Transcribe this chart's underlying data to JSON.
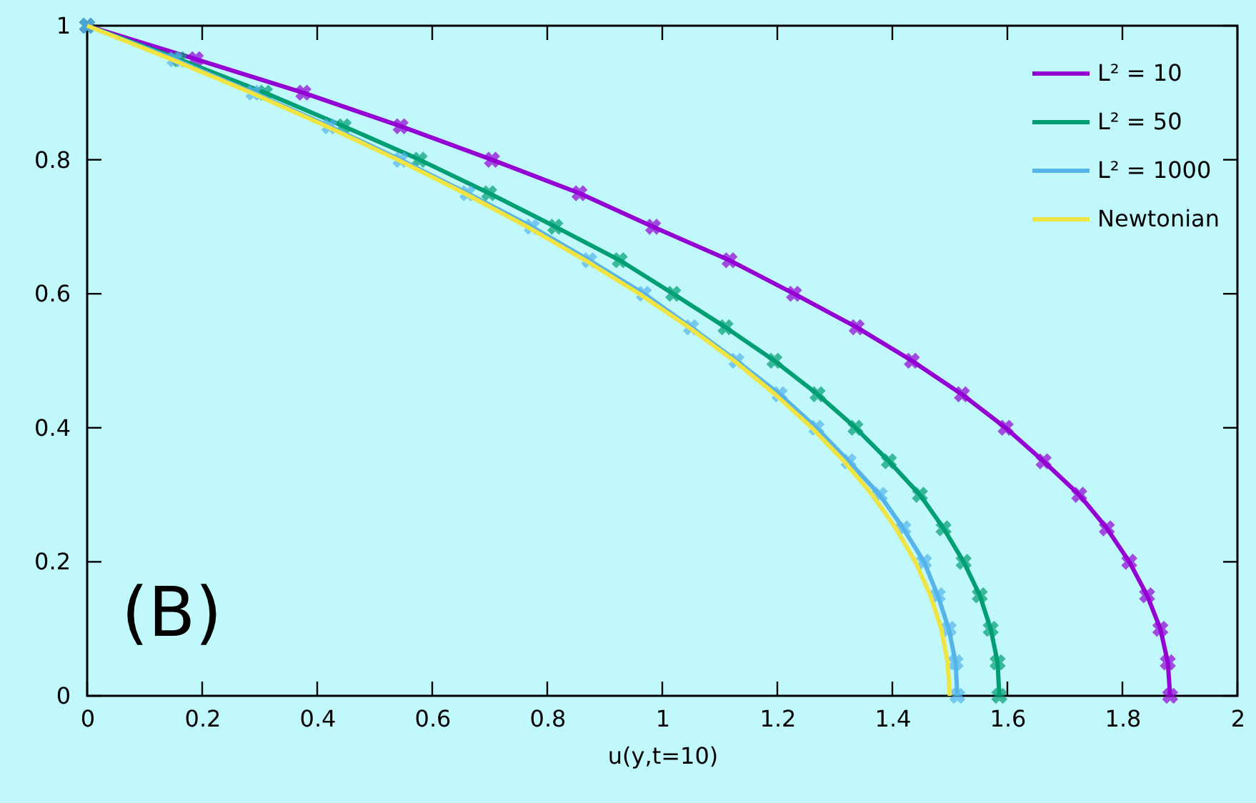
{
  "chart_data": {
    "type": "line",
    "xlabel": "u(y,t=10)",
    "xlim": [
      0,
      2
    ],
    "xticks": [
      0,
      0.2,
      0.4,
      0.6,
      0.8,
      1,
      1.2,
      1.4,
      1.6,
      1.8,
      2
    ],
    "ylim": [
      0,
      1
    ],
    "yticks": [
      0,
      0.2,
      0.4,
      0.6,
      0.8,
      1
    ],
    "grid": false,
    "legend": "top right",
    "annotations": [
      "(B)"
    ],
    "series": [
      {
        "name": "L² = 10",
        "color": "#9400d3",
        "marker": "cross",
        "x": [
          0,
          0.189,
          0.376,
          0.545,
          0.704,
          0.856,
          0.984,
          1.117,
          1.229,
          1.338,
          1.434,
          1.521,
          1.597,
          1.663,
          1.725,
          1.773,
          1.812,
          1.843,
          1.866,
          1.879,
          1.883
        ],
        "values": [
          1,
          0.95,
          0.9,
          0.85,
          0.8,
          0.75,
          0.7,
          0.65,
          0.6,
          0.55,
          0.5,
          0.45,
          0.4,
          0.35,
          0.3,
          0.25,
          0.2,
          0.15,
          0.1,
          0.05,
          0
        ]
      },
      {
        "name": "L² = 50",
        "color": "#009e73",
        "marker": "cross",
        "x": [
          0,
          0.16,
          0.309,
          0.446,
          0.578,
          0.699,
          0.814,
          0.926,
          1.019,
          1.11,
          1.195,
          1.27,
          1.336,
          1.394,
          1.448,
          1.489,
          1.524,
          1.552,
          1.571,
          1.583,
          1.586
        ],
        "values": [
          1,
          0.95,
          0.9,
          0.85,
          0.8,
          0.75,
          0.7,
          0.65,
          0.6,
          0.55,
          0.5,
          0.45,
          0.4,
          0.35,
          0.3,
          0.25,
          0.2,
          0.15,
          0.1,
          0.05,
          0
        ]
      },
      {
        "name": "L² = 1000",
        "color": "#56b4e9",
        "marker": "cross",
        "x": [
          0,
          0.152,
          0.289,
          0.421,
          0.545,
          0.661,
          0.773,
          0.873,
          0.968,
          1.05,
          1.129,
          1.204,
          1.268,
          1.324,
          1.378,
          1.419,
          1.455,
          1.479,
          1.498,
          1.51,
          1.513
        ],
        "values": [
          1,
          0.95,
          0.9,
          0.85,
          0.8,
          0.75,
          0.7,
          0.65,
          0.6,
          0.55,
          0.5,
          0.45,
          0.4,
          0.35,
          0.3,
          0.25,
          0.2,
          0.15,
          0.1,
          0.05,
          0
        ]
      },
      {
        "name": "Newtonian",
        "color": "#f0e442",
        "marker": "none",
        "x": [
          0,
          0.146,
          0.285,
          0.416,
          0.54,
          0.656,
          0.765,
          0.866,
          0.96,
          1.046,
          1.125,
          1.196,
          1.26,
          1.316,
          1.365,
          1.406,
          1.44,
          1.466,
          1.485,
          1.496,
          1.5
        ],
        "values": [
          1,
          0.95,
          0.9,
          0.85,
          0.8,
          0.75,
          0.7,
          0.65,
          0.6,
          0.55,
          0.5,
          0.45,
          0.4,
          0.35,
          0.3,
          0.25,
          0.2,
          0.15,
          0.1,
          0.05,
          0
        ]
      }
    ]
  }
}
